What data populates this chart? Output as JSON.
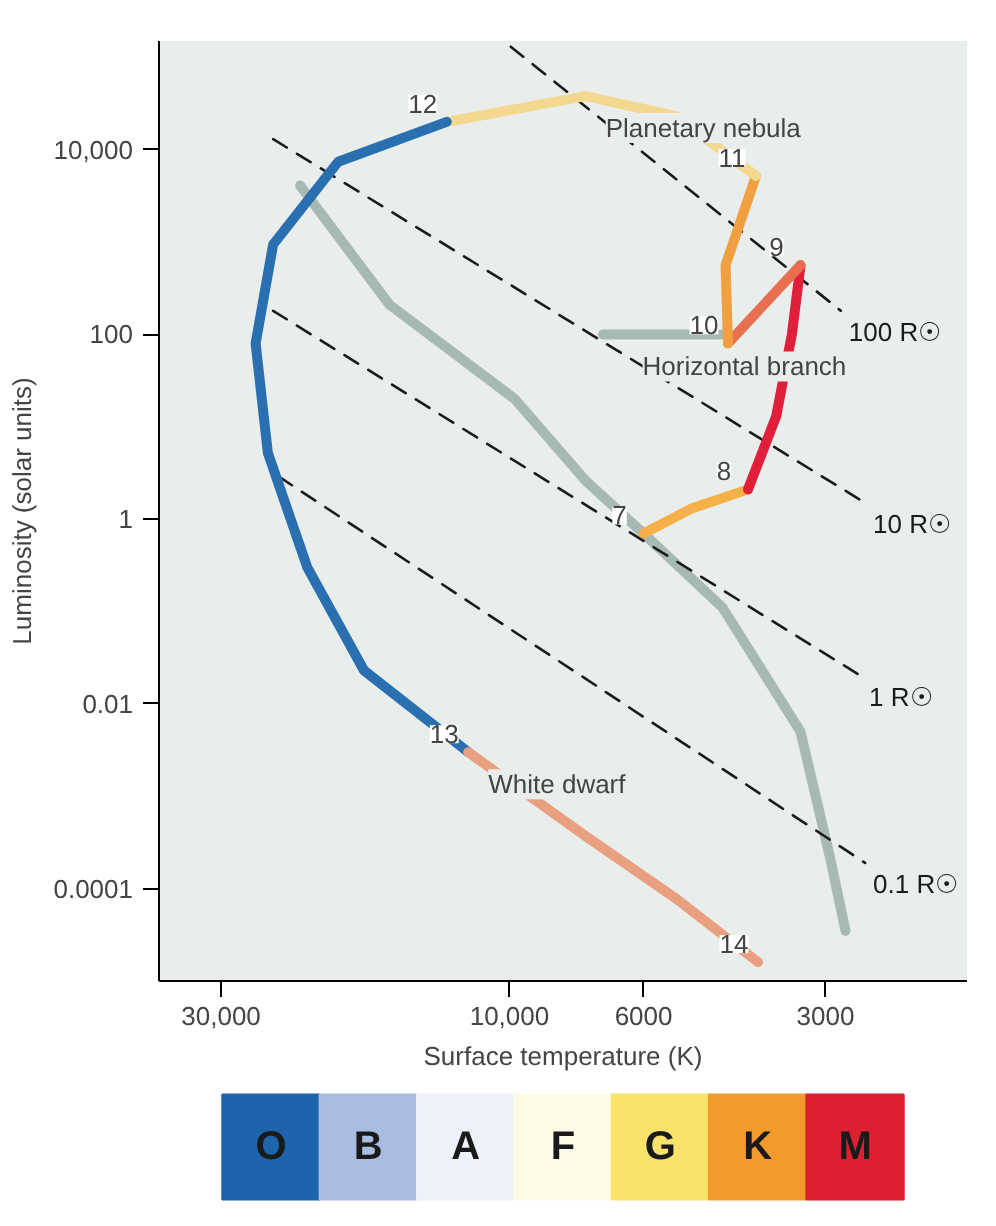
{
  "chart_data": [
    {
      "type": "line",
      "xlabel": "Surface temperature (K)",
      "ylabel": "Luminosity (solar units)",
      "log": "xy",
      "grid": false,
      "xlim": [
        38000,
        1750
      ],
      "ylim": [
        1e-05,
        150000
      ],
      "xticks": [
        {
          "value": 30000,
          "label": "30,000"
        },
        {
          "value": 10000,
          "label": "10,000"
        },
        6000,
        3000
      ],
      "yticks": [
        {
          "value": 10000,
          "label": "10,000"
        },
        100,
        1,
        0.01,
        0.0001
      ],
      "series": [
        {
          "color": "#a7b9b3",
          "line_style": "solid",
          "x": [
            22200,
            15800,
            9800,
            7480,
            6000,
            4440,
            3300,
            2950,
            2780
          ],
          "values": [
            4100,
            210,
            20,
            2.6,
            0.7,
            0.11,
            0.005,
            0.00022,
            3.5e-05
          ]
        },
        {
          "color": "#a7b9b3",
          "line_style": "solid",
          "x": [
            7000,
            4470
          ],
          "values": [
            100,
            100
          ]
        },
        {
          "name": "100 R☉",
          "color": "#1a1a1a",
          "line_style": "dashed",
          "x": [
            9950,
            2830
          ],
          "values": [
            130000,
            180
          ]
        },
        {
          "name": "10 R☉",
          "color": "#1a1a1a",
          "line_style": "dashed",
          "x": [
            24600,
            2580
          ],
          "values": [
            13000,
            1.5
          ]
        },
        {
          "name": "1 R☉",
          "color": "#1a1a1a",
          "line_style": "dashed",
          "x": [
            24600,
            2620
          ],
          "values": [
            180,
            0.02
          ]
        },
        {
          "name": "0.1 R☉",
          "color": "#1a1a1a",
          "line_style": "dashed",
          "x": [
            24100,
            2580
          ],
          "values": [
            2.9,
            0.00019
          ]
        },
        {
          "color": "#f5b04a",
          "line_style": "solid",
          "x": [
            6000,
            5000,
            4030
          ],
          "values": [
            0.7,
            1.3,
            2.1
          ]
        },
        {
          "color": "#e0203a",
          "line_style": "solid",
          "x": [
            4030,
            3620,
            3410,
            3300
          ],
          "values": [
            2.1,
            13,
            100,
            560
          ]
        },
        {
          "color": "#e87050",
          "line_style": "solid",
          "x": [
            3300,
            4350
          ],
          "values": [
            560,
            80
          ]
        },
        {
          "color": "#f0a040",
          "line_style": "solid",
          "x": [
            4350,
            4390,
            3910
          ],
          "values": [
            80,
            560,
            5200
          ]
        },
        {
          "color": "#f5d890",
          "line_style": "solid",
          "x": [
            3910,
            5300,
            7480,
            12700
          ],
          "values": [
            5200,
            23000,
            38000,
            20000
          ]
        },
        {
          "color": "#2a70b0",
          "line_style": "solid",
          "x": [
            12700,
            19200,
            24600,
            26300,
            25100,
            21600,
            17400,
            11700
          ],
          "values": [
            20000,
            7400,
            940,
            80,
            5.2,
            0.3,
            0.023,
            0.003
          ]
        },
        {
          "color": "#e8a080",
          "line_style": "solid",
          "x": [
            11700,
            7480,
            5300,
            3880
          ],
          "values": [
            0.003,
            0.00037,
            7.8e-05,
            1.6e-05
          ]
        }
      ],
      "annotations": [
        {
          "text": "7",
          "x": 6000,
          "y": 0.7
        },
        {
          "text": "8",
          "x": 4030,
          "y": 2.1
        },
        {
          "text": "9",
          "x": 3300,
          "y": 560
        },
        {
          "text": "10",
          "x": 4350,
          "y": 80
        },
        {
          "text": "11",
          "x": 3910,
          "y": 5200
        },
        {
          "text": "12",
          "x": 12700,
          "y": 20000
        },
        {
          "text": "13",
          "x": 11700,
          "y": 0.003
        },
        {
          "text": "14",
          "x": 3880,
          "y": 1.6e-05
        },
        {
          "text": "Planetary nebula",
          "x": 7480,
          "y": 38000
        },
        {
          "text": "Horizontal branch",
          "x": 6500,
          "y": 100
        },
        {
          "text": "White dwarf",
          "x": 11700,
          "y": 0.003
        }
      ]
    },
    {
      "type": "other",
      "categories": [
        "O",
        "B",
        "A",
        "F",
        "G",
        "K",
        "M"
      ],
      "colors": [
        "#1e64ad",
        "#a9bde0",
        "#eef1f8",
        "#fdfbe8",
        "#fae36a",
        "#f29a2c",
        "#dc2030"
      ]
    }
  ]
}
